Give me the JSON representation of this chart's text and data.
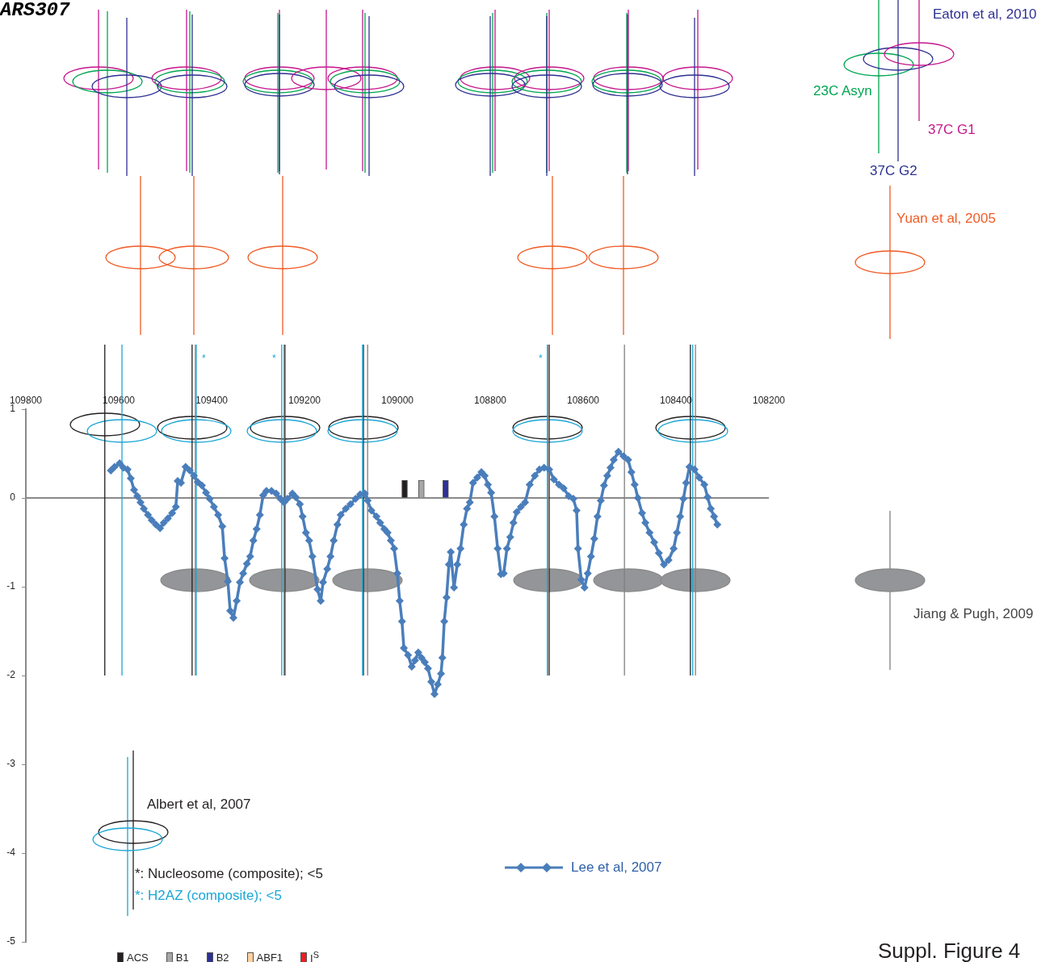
{
  "chart_data": {
    "type": "line",
    "title": "ARS307",
    "xlim": [
      109800,
      108200
    ],
    "xticks": [
      109800,
      109600,
      109400,
      109200,
      109000,
      108800,
      108600,
      108400,
      108200
    ],
    "ylim": [
      -5,
      1
    ],
    "yticks": [
      1,
      0,
      -1,
      -2,
      -3,
      -4,
      -5
    ],
    "grid": false,
    "legend": "bottom",
    "marker": "diamond",
    "series": [
      {
        "name": "Lee et al, 2007",
        "color": "#4a7ebb",
        "x": [
          109617,
          109609,
          109598,
          109590,
          109581,
          109574,
          109567,
          109560,
          109553,
          109546,
          109537,
          109529,
          109520,
          109511,
          109503,
          109494,
          109485,
          109477,
          109473,
          109466,
          109456,
          109447,
          109438,
          109430,
          109421,
          109412,
          109404,
          109395,
          109386,
          109377,
          109372,
          109365,
          109360,
          109353,
          109346,
          109339,
          109332,
          109324,
          109317,
          109310,
          109303,
          109296,
          109289,
          109282,
          109271,
          109261,
          109252,
          109244,
          109237,
          109226,
          109219,
          109210,
          109204,
          109197,
          109190,
          109183,
          109172,
          109165,
          109160,
          109151,
          109144,
          109137,
          109129,
          109122,
          109111,
          109101,
          109090,
          109080,
          109070,
          109064,
          109056,
          109045,
          109037,
          109028,
          109021,
          109014,
          109007,
          109000,
          108995,
          108990,
          108986,
          108977,
          108969,
          108962,
          108955,
          108948,
          108941,
          108934,
          108927,
          108920,
          108913,
          108906,
          108903,
          108899,
          108894,
          108889,
          108885,
          108878,
          108871,
          108864,
          108857,
          108850,
          108844,
          108837,
          108828,
          108819,
          108812,
          108805,
          108798,
          108791,
          108784,
          108777,
          108771,
          108764,
          108757,
          108750,
          108743,
          108734,
          108725,
          108715,
          108704,
          108694,
          108684,
          108673,
          108663,
          108652,
          108642,
          108631,
          108621,
          108614,
          108611,
          108604,
          108597,
          108590,
          108583,
          108576,
          108569,
          108562,
          108555,
          108548,
          108541,
          108534,
          108524,
          108513,
          108503,
          108496,
          108489,
          108482,
          108473,
          108466,
          108457,
          108447,
          108437,
          108426,
          108416,
          108405,
          108398,
          108391,
          108384,
          108378,
          108371,
          108360,
          108350,
          108339,
          108332,
          108325,
          108318,
          108311
        ],
        "values": [
          0.31,
          0.35,
          0.39,
          0.34,
          0.32,
          0.22,
          0.09,
          0.02,
          -0.05,
          -0.12,
          -0.19,
          -0.25,
          -0.3,
          -0.34,
          -0.28,
          -0.23,
          -0.17,
          -0.1,
          0.19,
          0.17,
          0.35,
          0.31,
          0.25,
          0.18,
          0.14,
          0.06,
          -0.01,
          -0.1,
          -0.19,
          -0.32,
          -0.68,
          -0.94,
          -1.27,
          -1.35,
          -1.16,
          -0.95,
          -0.85,
          -0.74,
          -0.66,
          -0.48,
          -0.35,
          -0.19,
          0.03,
          0.08,
          0.08,
          0.05,
          -0.01,
          -0.05,
          -0.01,
          0.05,
          0.01,
          -0.07,
          -0.21,
          -0.39,
          -0.48,
          -0.66,
          -1.03,
          -1.16,
          -0.95,
          -0.8,
          -0.66,
          -0.48,
          -0.3,
          -0.19,
          -0.12,
          -0.07,
          -0.01,
          0.04,
          0.05,
          -0.03,
          -0.14,
          -0.21,
          -0.28,
          -0.35,
          -0.39,
          -0.48,
          -0.57,
          -0.85,
          -1.16,
          -1.39,
          -1.69,
          -1.77,
          -1.9,
          -1.83,
          -1.74,
          -1.8,
          -1.85,
          -1.92,
          -2.07,
          -2.21,
          -2.1,
          -1.98,
          -1.8,
          -1.39,
          -1.12,
          -0.75,
          -0.61,
          -1.01,
          -0.75,
          -0.57,
          -0.3,
          -0.12,
          -0.05,
          0.17,
          0.23,
          0.29,
          0.25,
          0.15,
          0.06,
          -0.21,
          -0.57,
          -0.86,
          -0.85,
          -0.57,
          -0.44,
          -0.28,
          -0.16,
          -0.1,
          -0.05,
          0.15,
          0.25,
          0.32,
          0.34,
          0.32,
          0.21,
          0.15,
          0.11,
          0.02,
          -0.01,
          -0.14,
          -0.57,
          -0.92,
          -1.01,
          -0.85,
          -0.66,
          -0.46,
          -0.21,
          -0.03,
          0.14,
          0.25,
          0.34,
          0.43,
          0.52,
          0.47,
          0.43,
          0.29,
          0.15,
          0,
          -0.17,
          -0.28,
          -0.39,
          -0.5,
          -0.62,
          -0.75,
          -0.7,
          -0.57,
          -0.39,
          -0.21,
          -0.01,
          0.17,
          0.35,
          0.32,
          0.23,
          0.15,
          0.01,
          -0.12,
          -0.21,
          -0.3
        ]
      },
      {
        "name": "ACS",
        "type": "bar",
        "color": "#231f20",
        "x": [
          108960
        ],
        "values": [
          0.2
        ]
      },
      {
        "name": "B1",
        "type": "bar",
        "color": "#a6a6a6",
        "x": [
          108936
        ],
        "values": [
          0.2
        ]
      },
      {
        "name": "B2",
        "type": "bar",
        "color": "#2e3192",
        "x": [
          108896
        ],
        "values": [
          0.2
        ]
      },
      {
        "name": "ABF1",
        "type": "bar",
        "color": "#fdd0a2"
      },
      {
        "name": "I$^{S}$",
        "type": "bar",
        "color": "#ed1c24"
      }
    ],
    "ref_lines": [
      {
        "axis": "y",
        "value": 0,
        "color": "#8a8a8a"
      },
      {
        "axis": "x",
        "value": 109630,
        "color": "#231f20"
      },
      {
        "axis": "x",
        "value": 109442,
        "color": "#231f20"
      },
      {
        "axis": "x",
        "value": 109242,
        "color": "#231f20"
      },
      {
        "axis": "x",
        "value": 109073,
        "color": "#231f20"
      },
      {
        "axis": "x",
        "value": 108673,
        "color": "#231f20"
      },
      {
        "axis": "x",
        "value": 108369,
        "color": "#231f20"
      },
      {
        "axis": "x",
        "value": 109593,
        "color": "#1aa6d6"
      },
      {
        "axis": "x",
        "value": 109433,
        "color": "#1aa6d6"
      },
      {
        "axis": "x",
        "value": 109249,
        "color": "#1aa6d6"
      },
      {
        "axis": "x",
        "value": 109075,
        "color": "#1aa6d6"
      },
      {
        "axis": "x",
        "value": 108677,
        "color": "#1aa6d6"
      },
      {
        "axis": "x",
        "value": 108364,
        "color": "#1aa6d6"
      },
      {
        "axis": "x",
        "value": 109435,
        "color": "#808080"
      },
      {
        "axis": "x",
        "value": 109244,
        "color": "#808080"
      },
      {
        "axis": "x",
        "value": 109064,
        "color": "#808080"
      },
      {
        "axis": "x",
        "value": 108675,
        "color": "#808080"
      },
      {
        "axis": "x",
        "value": 108511,
        "color": "#808080"
      },
      {
        "axis": "x",
        "value": 108358,
        "color": "#808080"
      }
    ],
    "annotations": [
      "Eaton et al, 2010",
      "23C Asyn",
      "37C G1",
      "37C G2",
      "Yuan et al, 2005",
      "Jiang & Pugh, 2009",
      "Albert et al, 2007",
      "*: Nucleosome (composite); <5",
      "*: H2AZ (composite); <5",
      "*",
      "*",
      "*",
      "Suppl. Figure 4"
    ]
  }
}
